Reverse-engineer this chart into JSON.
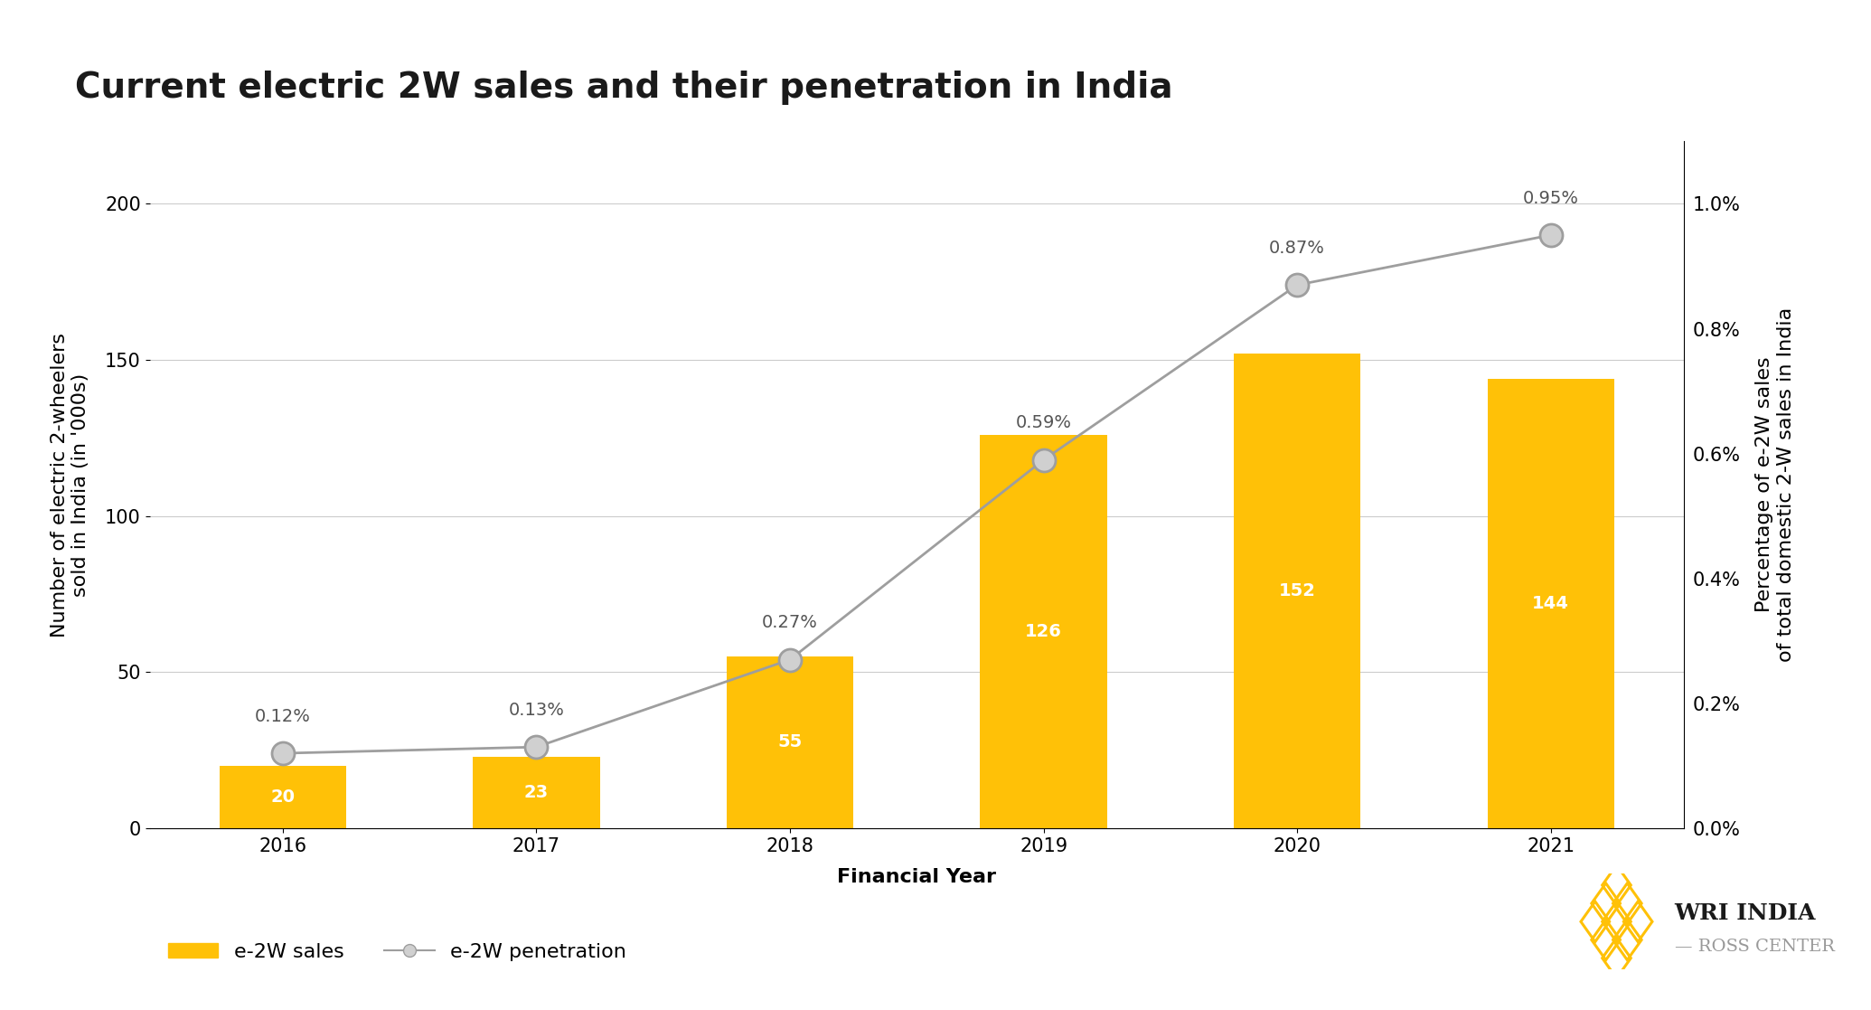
{
  "title": "Current electric 2W sales and their penetration in India",
  "years": [
    2016,
    2017,
    2018,
    2019,
    2020,
    2021
  ],
  "sales": [
    20,
    23,
    55,
    126,
    152,
    144
  ],
  "penetration": [
    0.0012,
    0.0013,
    0.0027,
    0.0059,
    0.0087,
    0.0095
  ],
  "penetration_labels": [
    "0.12%",
    "0.13%",
    "0.27%",
    "0.59%",
    "0.87%",
    "0.95%"
  ],
  "bar_color": "#FFC107",
  "line_color": "#9E9E9E",
  "marker_color": "#9E9E9E",
  "marker_face": "#D0D0D0",
  "xlabel": "Financial Year",
  "ylabel_left": "Number of electric 2-wheelers\nsold in India (in '000s)",
  "ylabel_right": "Percentage of e-2W sales\nof total domestic 2-W sales in India",
  "ylim_left": [
    0,
    220
  ],
  "ylim_right": [
    0.0,
    0.011
  ],
  "yticks_left": [
    0,
    50,
    100,
    150,
    200
  ],
  "yticks_right": [
    0.0,
    0.002,
    0.004,
    0.006,
    0.008,
    0.01
  ],
  "ytick_right_labels": [
    "0.0%",
    "0.2%",
    "0.4%",
    "0.6%",
    "0.8%",
    "1.0%"
  ],
  "legend_bar_label": "e-2W sales",
  "legend_line_label": "e-2W penetration",
  "background_color": "#FFFFFF",
  "title_fontsize": 28,
  "label_fontsize": 16,
  "tick_fontsize": 15,
  "annotation_fontsize": 14,
  "bar_value_fontsize": 14
}
